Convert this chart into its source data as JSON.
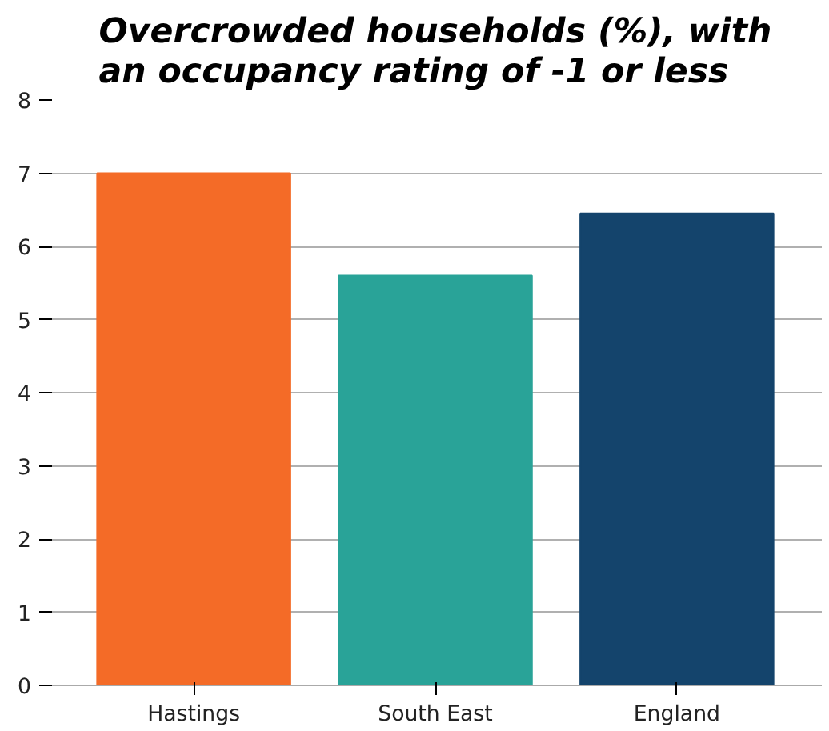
{
  "chart_data": {
    "type": "bar",
    "title": "Overcrowded households (%), with\nan occupancy rating of -1 or less",
    "categories": [
      "Hastings",
      "South East",
      "England"
    ],
    "values": [
      7.0,
      5.6,
      6.45
    ],
    "colors": [
      "#f46b27",
      "#29a398",
      "#14446c"
    ],
    "ylim": [
      0,
      8
    ],
    "yticks": [
      0,
      1,
      2,
      3,
      4,
      5,
      6,
      7,
      8
    ],
    "grid": "y"
  }
}
